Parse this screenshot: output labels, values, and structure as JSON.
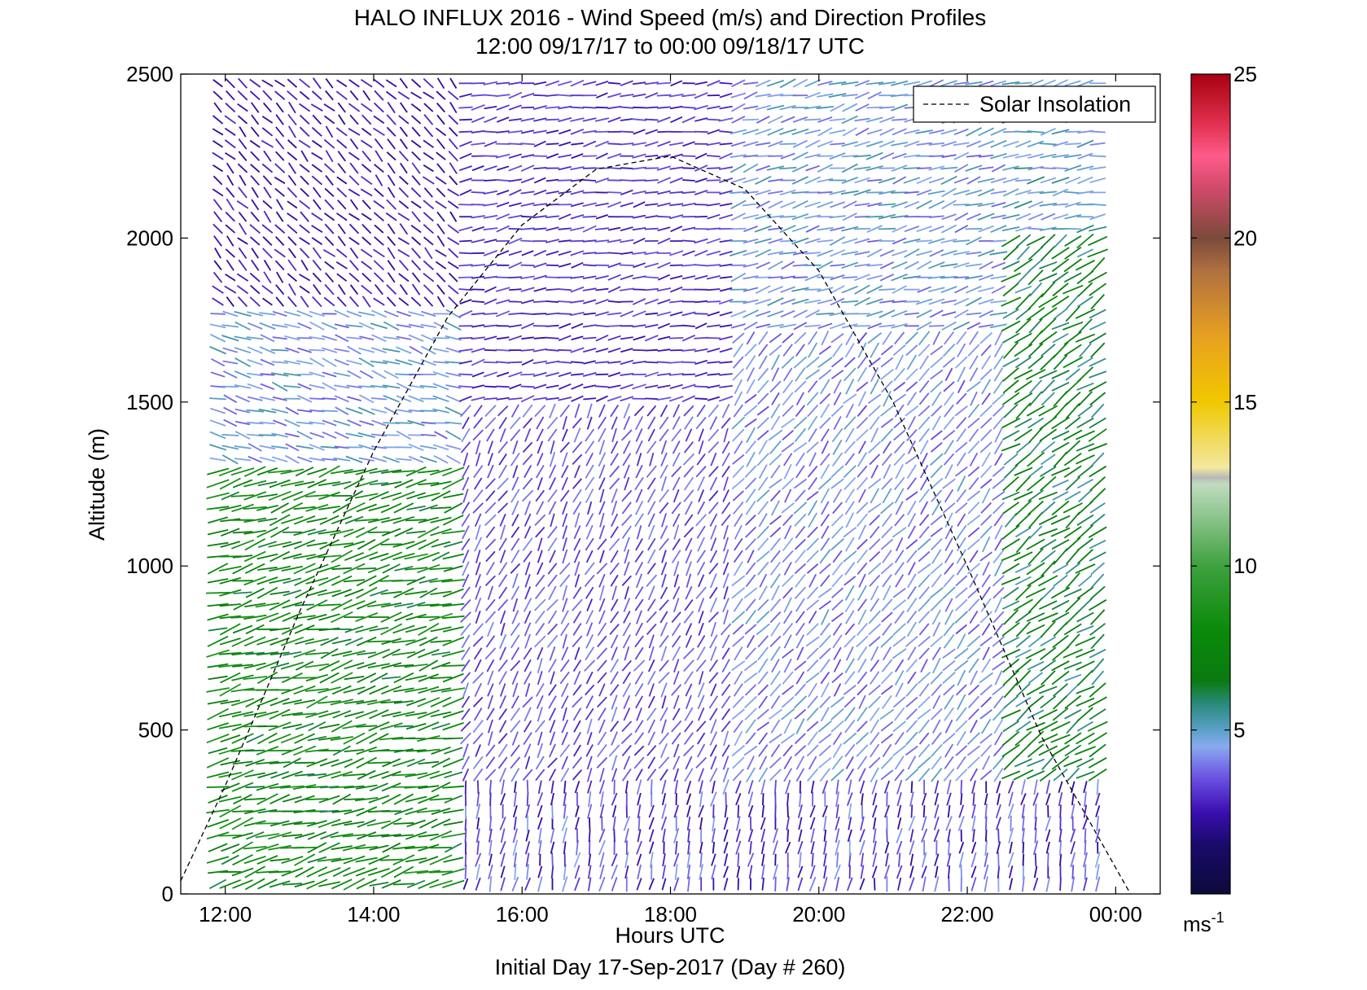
{
  "chart_data": {
    "type": "quiver",
    "title": "HALO INFLUX 2016 - Wind Speed (m/s) and Direction Profiles",
    "subtitle": "12:00 09/17/17 to 00:00 09/18/17  UTC",
    "xlabel": "Hours UTC",
    "xlabel2": "Initial Day 17-Sep-2017 (Day # 260)",
    "ylabel": "Altitude (m)",
    "xlim": [
      11.4,
      24.6
    ],
    "ylim": [
      0,
      2500
    ],
    "x_ticks": [
      {
        "value": 12,
        "label": "12:00"
      },
      {
        "value": 14,
        "label": "14:00"
      },
      {
        "value": 16,
        "label": "16:00"
      },
      {
        "value": 18,
        "label": "18:00"
      },
      {
        "value": 20,
        "label": "20:00"
      },
      {
        "value": 22,
        "label": "22:00"
      },
      {
        "value": 24,
        "label": "00:00"
      }
    ],
    "y_ticks": [
      {
        "value": 0,
        "label": "0"
      },
      {
        "value": 500,
        "label": "500"
      },
      {
        "value": 1000,
        "label": "1000"
      },
      {
        "value": 1500,
        "label": "1500"
      },
      {
        "value": 2000,
        "label": "2000"
      },
      {
        "value": 2500,
        "label": "2500"
      }
    ],
    "legend": {
      "position": "top-right",
      "entries": [
        {
          "name": "Solar Insolation",
          "style": "dashed",
          "color": "#000000"
        }
      ]
    },
    "solar_insolation": {
      "x": [
        11.4,
        12.0,
        13.0,
        14.0,
        15.0,
        16.0,
        17.0,
        18.0,
        19.0,
        20.0,
        21.0,
        22.0,
        23.0,
        24.0,
        24.2
      ],
      "y": [
        40,
        330,
        860,
        1350,
        1760,
        2040,
        2210,
        2250,
        2150,
        1900,
        1500,
        1000,
        480,
        80,
        0
      ]
    },
    "colorbar": {
      "range": [
        0,
        25
      ],
      "unit": "ms",
      "unit_sup": "-1",
      "ticks": [
        {
          "value": 5,
          "label": "5"
        },
        {
          "value": 10,
          "label": "10"
        },
        {
          "value": 15,
          "label": "15"
        },
        {
          "value": 20,
          "label": "20"
        },
        {
          "value": 25,
          "label": "25"
        }
      ],
      "stops": [
        {
          "v": 0,
          "color": "#0b0b3a"
        },
        {
          "v": 1.5,
          "color": "#1a0a6a"
        },
        {
          "v": 2.5,
          "color": "#3a0fb0"
        },
        {
          "v": 3.5,
          "color": "#6a4ee0"
        },
        {
          "v": 4.5,
          "color": "#88aaf0"
        },
        {
          "v": 5.0,
          "color": "#5aa0c8"
        },
        {
          "v": 5.8,
          "color": "#2a8a7a"
        },
        {
          "v": 6.5,
          "color": "#0a7a10"
        },
        {
          "v": 8.0,
          "color": "#0a8a0a"
        },
        {
          "v": 10.0,
          "color": "#3ea03e"
        },
        {
          "v": 12.5,
          "color": "#c0dcc0"
        },
        {
          "v": 12.7,
          "color": "#b8b8b8"
        },
        {
          "v": 13.0,
          "color": "#f2e8a0"
        },
        {
          "v": 15.0,
          "color": "#f0c800"
        },
        {
          "v": 17.0,
          "color": "#e8a020"
        },
        {
          "v": 19.0,
          "color": "#b07040"
        },
        {
          "v": 20.0,
          "color": "#7a4a3a"
        },
        {
          "v": 21.5,
          "color": "#d04a6a"
        },
        {
          "v": 22.5,
          "color": "#ff5a8a"
        },
        {
          "v": 23.5,
          "color": "#e03050"
        },
        {
          "v": 25.0,
          "color": "#a80010"
        }
      ]
    },
    "wind_field": {
      "time_start": 11.9,
      "time_end": 23.85,
      "time_step": 0.167,
      "alt_start": 30,
      "alt_end": 2500,
      "alt_step": 37,
      "regimes": [
        {
          "t0": 11.9,
          "t1": 15.15,
          "z0": 0,
          "z1": 1300,
          "speed": 7.5,
          "dir_deg": 15
        },
        {
          "t0": 11.9,
          "t1": 15.15,
          "z0": 1300,
          "z1": 1800,
          "speed": 4.5,
          "dir_deg": 345
        },
        {
          "t0": 11.9,
          "t1": 15.15,
          "z0": 1800,
          "z1": 2500,
          "speed": 2.5,
          "dir_deg": 315
        },
        {
          "t0": 15.15,
          "t1": 18.8,
          "z0": 0,
          "z1": 1500,
          "speed": 3.5,
          "dir_deg": 60
        },
        {
          "t0": 15.15,
          "t1": 18.8,
          "z0": 1500,
          "z1": 2500,
          "speed": 3.0,
          "dir_deg": 10
        },
        {
          "t0": 18.8,
          "t1": 22.45,
          "z0": 0,
          "z1": 1700,
          "speed": 4.2,
          "dir_deg": 50
        },
        {
          "t0": 18.8,
          "t1": 22.45,
          "z0": 1700,
          "z1": 2500,
          "speed": 4.5,
          "dir_deg": 15
        },
        {
          "t0": 22.45,
          "t1": 23.85,
          "z0": 0,
          "z1": 2000,
          "speed": 6.5,
          "dir_deg": 35
        },
        {
          "t0": 22.45,
          "t1": 23.85,
          "z0": 2000,
          "z1": 2500,
          "speed": 5.0,
          "dir_deg": 10
        }
      ]
    }
  }
}
